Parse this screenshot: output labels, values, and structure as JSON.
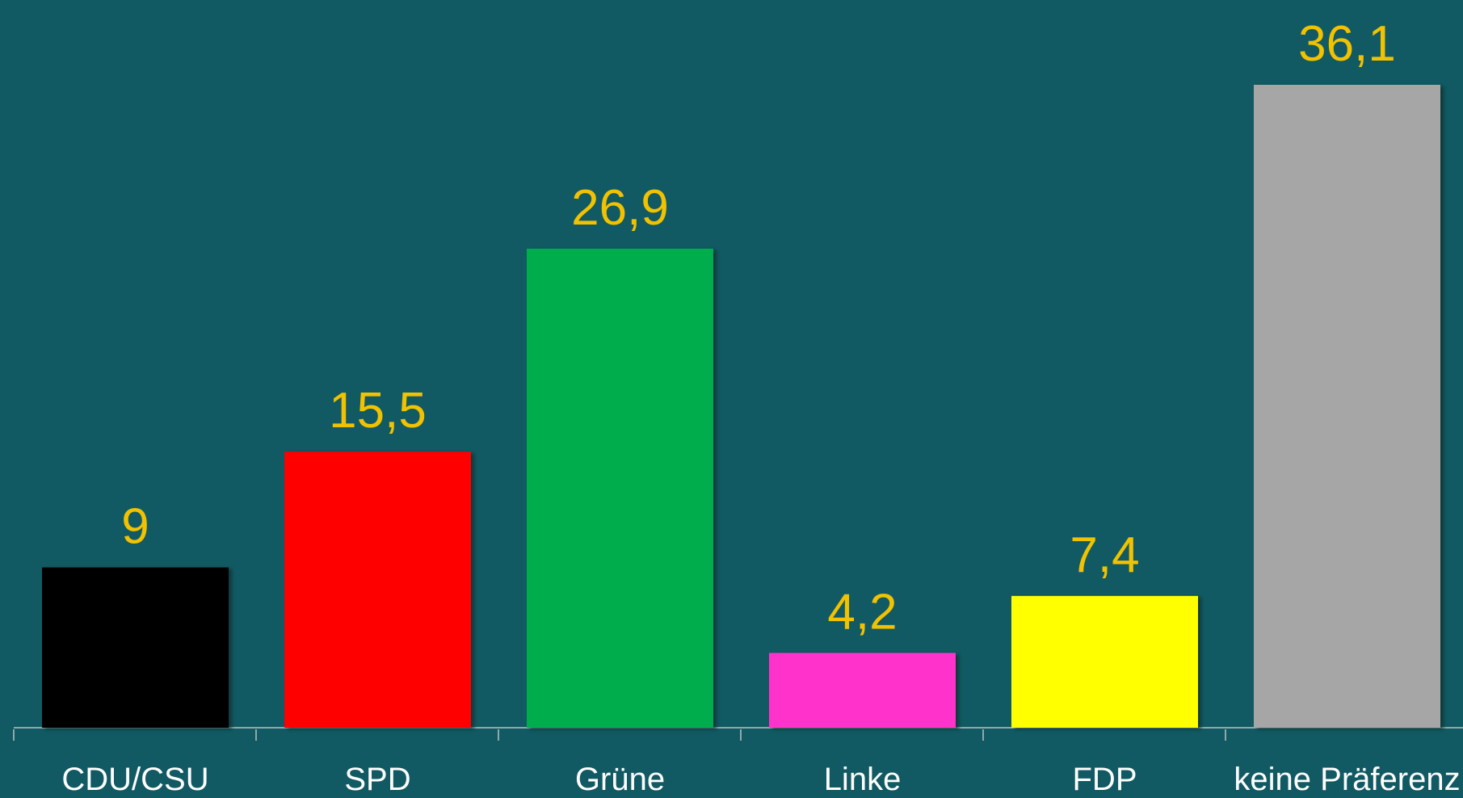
{
  "chart_data": {
    "type": "bar",
    "categories": [
      "CDU/CSU",
      "SPD",
      "Grüne",
      "Linke",
      "FDP",
      "keine Präferenz"
    ],
    "values": [
      9,
      15.5,
      26.9,
      4.2,
      7.4,
      36.1
    ],
    "value_labels": [
      "9",
      "15,5",
      "26,9",
      "4,2",
      "7,4",
      "36,1"
    ],
    "colors": [
      "#000000",
      "#ff0000",
      "#00ad4e",
      "#ff33cc",
      "#ffff00",
      "#a6a6a6"
    ]
  }
}
